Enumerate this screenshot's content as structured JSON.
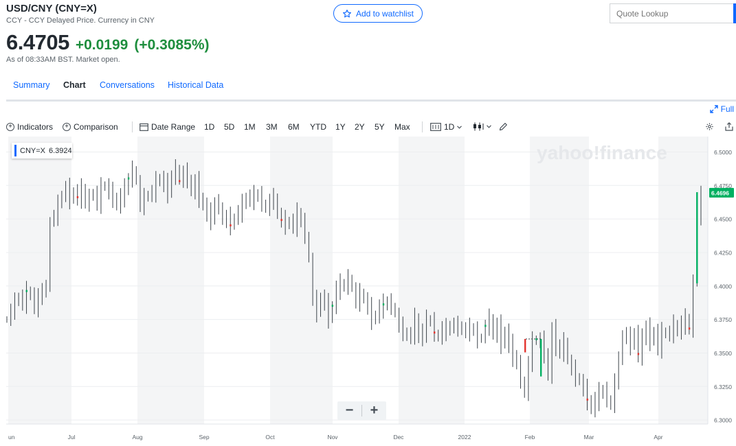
{
  "header": {
    "title": "USD/CNY (CNY=X)",
    "subtitle": "CCY - CCY Delayed Price. Currency in CNY",
    "price": "6.4705",
    "change": "+0.0199",
    "change_pct": "(+0.3085%)",
    "as_of": "As of 08:33AM BST. Market open.",
    "watchlist_label": "Add to watchlist",
    "lookup_placeholder": "Quote Lookup"
  },
  "tabs": [
    "Summary",
    "Chart",
    "Conversations",
    "Historical Data"
  ],
  "active_tab": "Chart",
  "full_label": "Full",
  "toolbar": {
    "indicators": "Indicators",
    "comparison": "Comparison",
    "date_range": "Date Range",
    "ranges": [
      "1D",
      "5D",
      "1M",
      "3M",
      "6M",
      "YTD",
      "1Y",
      "2Y",
      "5Y",
      "Max"
    ],
    "interval": "1D"
  },
  "legend": {
    "symbol": "CNY=X",
    "value": "6.3924"
  },
  "watermark": "yahoo!finance",
  "colors": {
    "accent": "#0f69ff",
    "up": "#1e8e3e",
    "up_bar": "#00b061",
    "down_bar": "#e3342f"
  },
  "chart_data": {
    "type": "line",
    "y_ticks": [
      "6.5000",
      "6.4750",
      "6.4500",
      "6.4250",
      "6.4000",
      "6.3750",
      "6.3500",
      "6.3250",
      "6.3000"
    ],
    "ylim": [
      6.297,
      6.5115
    ],
    "x_labels": [
      "Jun",
      "Jul",
      "Aug",
      "Sep",
      "Oct",
      "Nov",
      "Dec",
      "2022",
      "Feb",
      "Mar",
      "Apr"
    ],
    "last_price_label": "6.4696",
    "series": [
      {
        "values": [
          6.375,
          6.382,
          6.388,
          6.392,
          6.387,
          6.396,
          6.393,
          6.385,
          6.39,
          6.398,
          6.398,
          6.449,
          6.452,
          6.461,
          6.468,
          6.473,
          6.465,
          6.47,
          6.466,
          6.472,
          6.462,
          6.466,
          6.47,
          6.461,
          6.474,
          6.475,
          6.47,
          6.466,
          6.46,
          6.467,
          6.472,
          6.48,
          6.487,
          6.478,
          6.46,
          6.466,
          6.468,
          6.47,
          6.478,
          6.48,
          6.476,
          6.47,
          6.482,
          6.488,
          6.478,
          6.485,
          6.48,
          6.47,
          6.478,
          6.466,
          6.46,
          6.454,
          6.45,
          6.462,
          6.46,
          6.448,
          6.452,
          6.445,
          6.451,
          6.455,
          6.461,
          6.466,
          6.465,
          6.467,
          6.468,
          6.462,
          6.457,
          6.464,
          6.466,
          6.453,
          6.449,
          6.446,
          6.448,
          6.445,
          6.454,
          6.448,
          6.438,
          6.42,
          6.39,
          6.38,
          6.392,
          6.387,
          6.376,
          6.385,
          6.398,
          6.401,
          6.4,
          6.406,
          6.398,
          6.388,
          6.395,
          6.39,
          6.384,
          6.375,
          6.378,
          6.384,
          6.386,
          6.388,
          6.385,
          6.379,
          6.37,
          6.366,
          6.362,
          6.364,
          6.376,
          6.361,
          6.366,
          6.374,
          6.374,
          6.365,
          6.361,
          6.369,
          6.366,
          6.371,
          6.37,
          6.37,
          6.367,
          6.367,
          6.368,
          6.367,
          6.36,
          6.362,
          6.37,
          6.376,
          6.363,
          6.371,
          6.357,
          6.366,
          6.356,
          6.348,
          6.342,
          6.33,
          6.319,
          6.343,
          6.359,
          6.36,
          6.359,
          6.35,
          6.333,
          6.367,
          6.356,
          6.35,
          6.359,
          6.344,
          6.338,
          6.332,
          6.329,
          6.323,
          6.315,
          6.308,
          6.315,
          6.32,
          6.322,
          6.316,
          6.31,
          6.33,
          6.344,
          6.364,
          6.362,
          6.356,
          6.365,
          6.349,
          6.36,
          6.37,
          6.358,
          6.367,
          6.353,
          6.366,
          6.364,
          6.365,
          6.371,
          6.366,
          6.372,
          6.375,
          6.368,
          6.402,
          6.45,
          6.47
        ]
      }
    ]
  }
}
